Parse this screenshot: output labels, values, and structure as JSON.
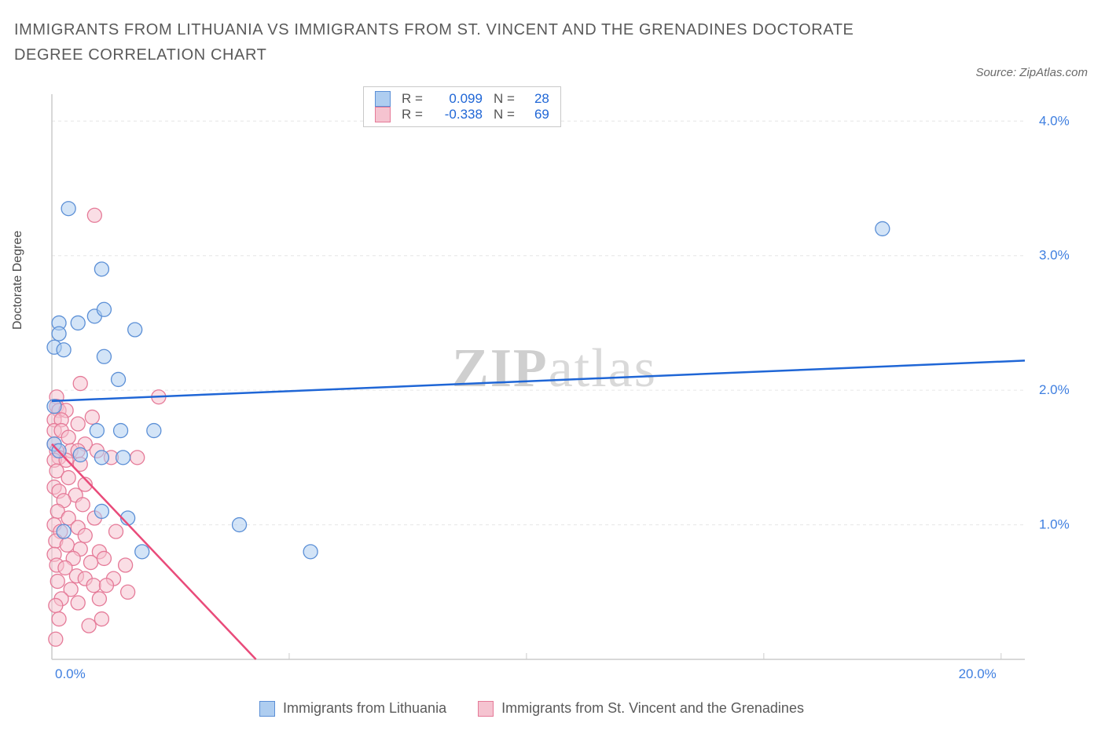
{
  "title": "IMMIGRANTS FROM LITHUANIA VS IMMIGRANTS FROM ST. VINCENT AND THE GRENADINES DOCTORATE DEGREE CORRELATION CHART",
  "source_label": "Source: ZipAtlas.com",
  "ylabel": "Doctorate Degree",
  "watermark": {
    "bold": "ZIP",
    "rest": "atlas"
  },
  "chart": {
    "type": "scatter+regression",
    "plot_bg": "#ffffff",
    "grid_color": "#e6e6e6",
    "axis_color": "#cccccc",
    "xlim": [
      0,
      20.5
    ],
    "ylim": [
      0,
      4.2
    ],
    "xticks": [
      0,
      5,
      10,
      15,
      20
    ],
    "xtick_labels": [
      "0.0%",
      "",
      "",
      "",
      "20.0%"
    ],
    "yticks": [
      1.0,
      2.0,
      3.0,
      4.0
    ],
    "ytick_labels": [
      "1.0%",
      "2.0%",
      "3.0%",
      "4.0%"
    ],
    "ytick_color": "#3f7fe0",
    "marker_radius": 9,
    "marker_opacity": 0.55,
    "regression_width": 2.5
  },
  "series": [
    {
      "id": "lithuania",
      "legend_label": "Immigrants from Lithuania",
      "fill": "#aecdf0",
      "stroke": "#5b8fd6",
      "line_color": "#1f66d6",
      "R": 0.099,
      "N": 28,
      "reg_start": [
        0,
        1.92
      ],
      "reg_end": [
        20.5,
        2.22
      ],
      "reg_dash_extend": false,
      "points": [
        [
          0.35,
          3.35
        ],
        [
          1.05,
          2.9
        ],
        [
          17.5,
          3.2
        ],
        [
          0.9,
          2.55
        ],
        [
          1.1,
          2.6
        ],
        [
          1.75,
          2.45
        ],
        [
          0.15,
          2.5
        ],
        [
          0.55,
          2.5
        ],
        [
          0.15,
          2.42
        ],
        [
          0.05,
          2.32
        ],
        [
          0.25,
          2.3
        ],
        [
          1.1,
          2.25
        ],
        [
          1.4,
          2.08
        ],
        [
          0.05,
          1.88
        ],
        [
          1.45,
          1.7
        ],
        [
          0.95,
          1.7
        ],
        [
          2.15,
          1.7
        ],
        [
          0.05,
          1.6
        ],
        [
          0.15,
          1.55
        ],
        [
          0.6,
          1.52
        ],
        [
          1.5,
          1.5
        ],
        [
          1.05,
          1.5
        ],
        [
          1.6,
          1.05
        ],
        [
          1.05,
          1.1
        ],
        [
          3.95,
          1.0
        ],
        [
          0.25,
          0.95
        ],
        [
          1.9,
          0.8
        ],
        [
          5.45,
          0.8
        ]
      ]
    },
    {
      "id": "svg",
      "legend_label": "Immigrants from St. Vincent and the Grenadines",
      "fill": "#f5c3d0",
      "stroke": "#e57a98",
      "line_color": "#e94b7a",
      "R": -0.338,
      "N": 69,
      "reg_start": [
        0,
        1.6
      ],
      "reg_end": [
        4.3,
        0.0
      ],
      "reg_dash_extend": true,
      "points": [
        [
          0.9,
          3.3
        ],
        [
          0.6,
          2.05
        ],
        [
          0.1,
          1.95
        ],
        [
          0.1,
          1.88
        ],
        [
          0.15,
          1.85
        ],
        [
          0.3,
          1.85
        ],
        [
          2.25,
          1.95
        ],
        [
          0.05,
          1.78
        ],
        [
          0.2,
          1.78
        ],
        [
          0.55,
          1.75
        ],
        [
          0.85,
          1.8
        ],
        [
          0.05,
          1.7
        ],
        [
          0.2,
          1.7
        ],
        [
          0.35,
          1.65
        ],
        [
          0.7,
          1.6
        ],
        [
          0.05,
          1.6
        ],
        [
          0.4,
          1.55
        ],
        [
          0.1,
          1.55
        ],
        [
          0.55,
          1.55
        ],
        [
          0.95,
          1.55
        ],
        [
          0.15,
          1.5
        ],
        [
          0.05,
          1.48
        ],
        [
          0.3,
          1.48
        ],
        [
          0.6,
          1.45
        ],
        [
          1.25,
          1.5
        ],
        [
          1.8,
          1.5
        ],
        [
          0.1,
          1.4
        ],
        [
          0.35,
          1.35
        ],
        [
          0.7,
          1.3
        ],
        [
          0.05,
          1.28
        ],
        [
          0.15,
          1.25
        ],
        [
          0.5,
          1.22
        ],
        [
          0.25,
          1.18
        ],
        [
          0.65,
          1.15
        ],
        [
          0.12,
          1.1
        ],
        [
          0.9,
          1.05
        ],
        [
          0.35,
          1.05
        ],
        [
          0.05,
          1.0
        ],
        [
          0.55,
          0.98
        ],
        [
          0.18,
          0.95
        ],
        [
          0.7,
          0.92
        ],
        [
          1.35,
          0.95
        ],
        [
          0.08,
          0.88
        ],
        [
          0.32,
          0.85
        ],
        [
          0.6,
          0.82
        ],
        [
          1.0,
          0.8
        ],
        [
          0.05,
          0.78
        ],
        [
          0.45,
          0.75
        ],
        [
          0.82,
          0.72
        ],
        [
          1.1,
          0.75
        ],
        [
          1.55,
          0.7
        ],
        [
          0.1,
          0.7
        ],
        [
          0.28,
          0.68
        ],
        [
          0.52,
          0.62
        ],
        [
          0.12,
          0.58
        ],
        [
          0.7,
          0.6
        ],
        [
          1.3,
          0.6
        ],
        [
          0.4,
          0.52
        ],
        [
          0.88,
          0.55
        ],
        [
          1.15,
          0.55
        ],
        [
          1.6,
          0.5
        ],
        [
          0.2,
          0.45
        ],
        [
          0.55,
          0.42
        ],
        [
          0.08,
          0.4
        ],
        [
          1.0,
          0.45
        ],
        [
          0.15,
          0.3
        ],
        [
          0.78,
          0.25
        ],
        [
          1.05,
          0.3
        ],
        [
          0.08,
          0.15
        ]
      ]
    }
  ],
  "stats_box": {
    "value_color": "#1f66d6",
    "r_label": "R =",
    "n_label": "N ="
  },
  "colors": {
    "title": "#5a5a5a"
  }
}
